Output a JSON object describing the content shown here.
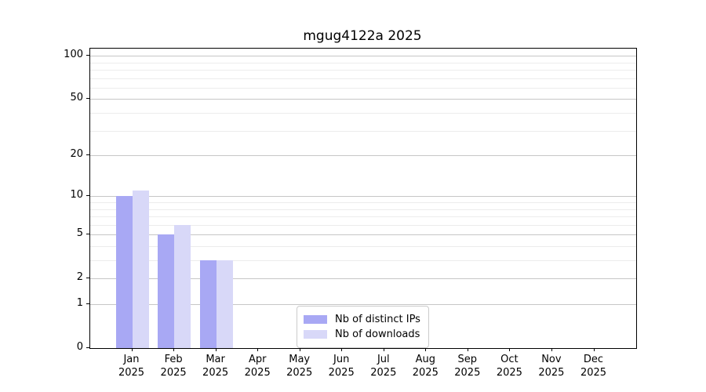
{
  "chart_data": {
    "type": "bar",
    "title": "mgug4122a 2025",
    "categories": [
      "Jan",
      "Feb",
      "Mar",
      "Apr",
      "May",
      "Jun",
      "Jul",
      "Aug",
      "Sep",
      "Oct",
      "Nov",
      "Dec"
    ],
    "x_tick_second_line": "2025",
    "series": [
      {
        "key": "distinct-ips",
        "name": "Nb of distinct IPs",
        "color": "#a8a8f4",
        "values": [
          10,
          5,
          3,
          0,
          0,
          0,
          0,
          0,
          0,
          0,
          0,
          0
        ]
      },
      {
        "key": "downloads",
        "name": "Nb of downloads",
        "color": "#d8d8f8",
        "values": [
          11,
          6,
          3,
          0,
          0,
          0,
          0,
          0,
          0,
          0,
          0,
          0
        ]
      }
    ],
    "y_axis": {
      "scale": "log1p",
      "ticks": [
        0,
        1,
        2,
        5,
        10,
        20,
        50,
        100
      ],
      "minor_gridlines": [
        3,
        4,
        6,
        7,
        8,
        9,
        30,
        40,
        60,
        70,
        80,
        90
      ],
      "top_value": 112
    },
    "grid": true,
    "legend_position": "lower center",
    "colors": {
      "axis": "#000000",
      "major_grid": "#c6c6c6",
      "minor_grid": "#ececec",
      "background": "#ffffff"
    }
  }
}
